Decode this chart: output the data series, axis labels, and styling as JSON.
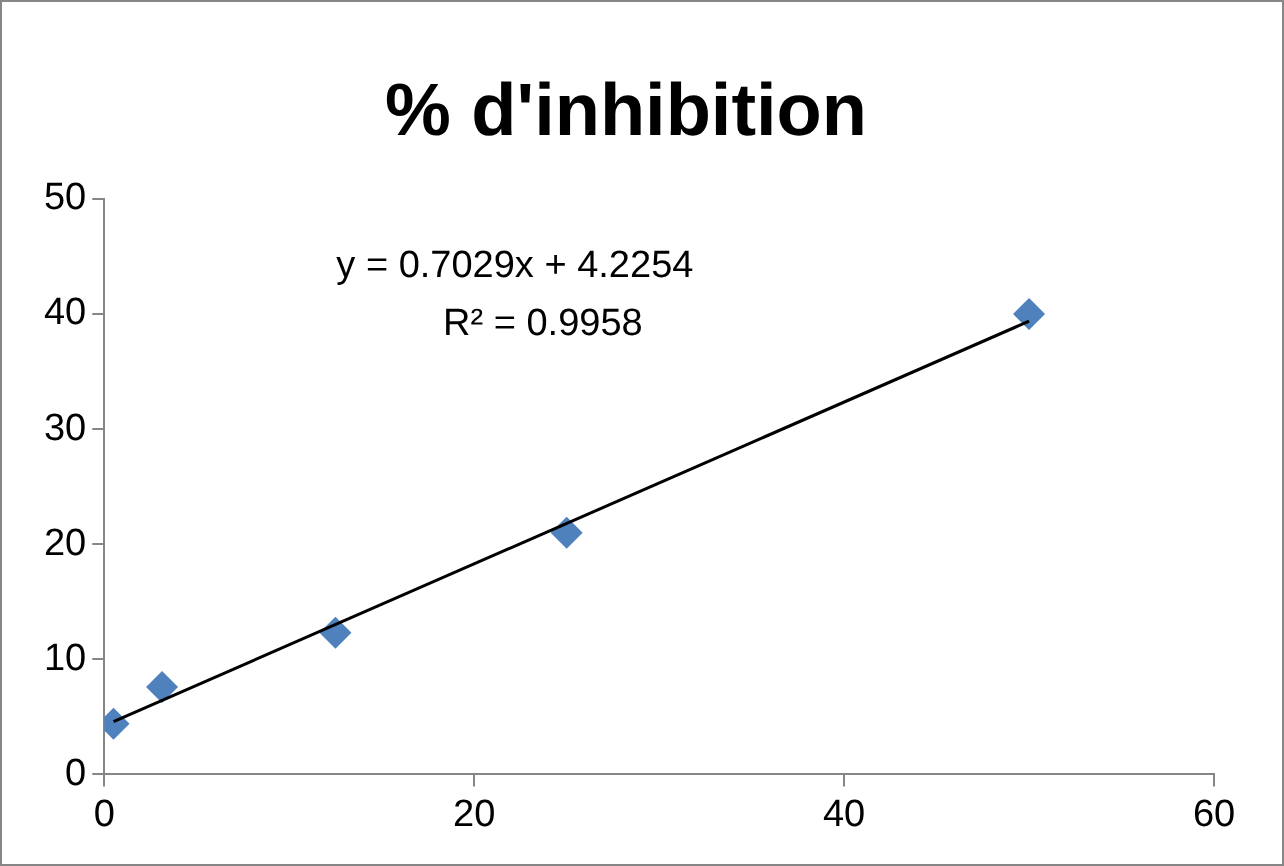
{
  "chart_data": {
    "type": "scatter",
    "title": "% d'inhibition",
    "x": [
      0.5,
      3.125,
      12.5,
      25,
      50
    ],
    "values": [
      4.4,
      7.6,
      12.3,
      21,
      40
    ],
    "color": "#4f81bd",
    "marker": "diamond",
    "series": [
      {
        "type": "line",
        "x": [
          0.5,
          50
        ],
        "values": [
          4.58,
          39.37
        ],
        "color": "#000000",
        "marker": "none"
      }
    ],
    "annotations": [
      "y = 0.7029x + 4.2254",
      "R² = 0.9958"
    ],
    "xlim": [
      0,
      60
    ],
    "xticks": [
      0,
      20,
      40,
      60
    ],
    "ylim": [
      0,
      50
    ],
    "yticks": [
      0,
      10,
      20,
      30,
      40,
      50
    ],
    "grid": false,
    "legend": false
  }
}
